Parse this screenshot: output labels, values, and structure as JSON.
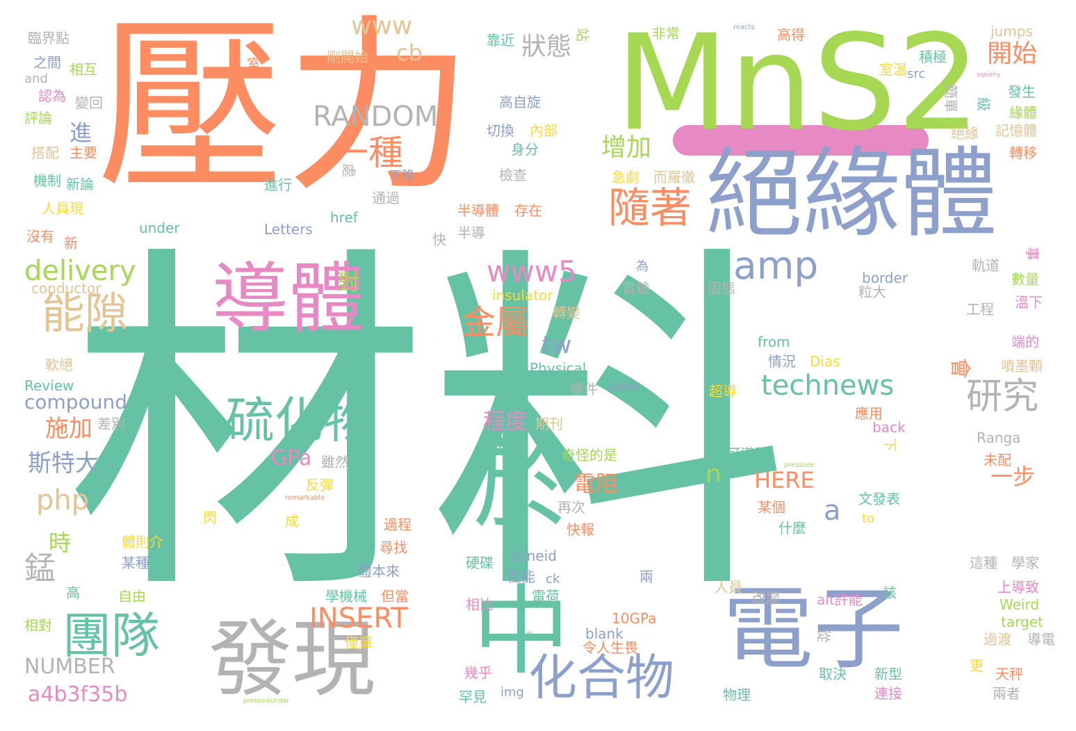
{
  "palette": {
    "teal": "#66c2a5",
    "orange": "#fc8d62",
    "blue": "#8da0cb",
    "pink": "#e78ac3",
    "green": "#a6d854",
    "yellow": "#ffd92f",
    "tan": "#e5c494",
    "gray": "#b3b3b3"
  },
  "highlight_bar_color": "#e78ac3",
  "words": [
    {
      "text": "材料",
      "color": "teal"
    },
    {
      "text": "壓力",
      "color": "orange"
    },
    {
      "text": "MnS2",
      "color": "green"
    },
    {
      "text": "絕緣體",
      "color": "blue"
    },
    {
      "text": "導體",
      "color": "pink"
    },
    {
      "text": "於",
      "color": "teal"
    },
    {
      "text": "中",
      "color": "teal"
    },
    {
      "text": "電子",
      "color": "blue"
    },
    {
      "text": "發現",
      "color": "gray"
    },
    {
      "text": "團隊",
      "color": "teal"
    },
    {
      "text": "硫化物",
      "color": "teal"
    },
    {
      "text": "化合物",
      "color": "blue"
    },
    {
      "text": "能隙",
      "color": "tan"
    },
    {
      "text": "隨著",
      "color": "orange"
    },
    {
      "text": "amp",
      "color": "blue"
    },
    {
      "text": "technews",
      "color": "teal"
    },
    {
      "text": "研究",
      "color": "gray"
    },
    {
      "text": "一種",
      "color": "orange"
    },
    {
      "text": "金屬",
      "color": "orange"
    },
    {
      "text": "www5",
      "color": "pink"
    },
    {
      "text": "delivery",
      "color": "green"
    },
    {
      "text": "RANDOM",
      "color": "gray"
    },
    {
      "text": "INSERT",
      "color": "orange"
    },
    {
      "text": "www",
      "color": "tan"
    },
    {
      "text": "狀態",
      "color": "gray"
    },
    {
      "text": "開始",
      "color": "orange"
    },
    {
      "text": "增加",
      "color": "green"
    },
    {
      "text": "電阻",
      "color": "orange"
    },
    {
      "text": "php",
      "color": "tan"
    },
    {
      "text": "錳",
      "color": "gray"
    },
    {
      "text": "tw",
      "color": "blue"
    },
    {
      "text": "a4b3f35b",
      "color": "pink"
    },
    {
      "text": "NUMBER",
      "color": "gray"
    },
    {
      "text": "compound",
      "color": "blue"
    },
    {
      "text": "斯特大",
      "color": "blue"
    },
    {
      "text": "施加",
      "color": "orange"
    },
    {
      "text": "程度",
      "color": "pink"
    },
    {
      "text": "HERE",
      "color": "orange"
    },
    {
      "text": "一步",
      "color": "orange"
    },
    {
      "text": "會",
      "color": "orange"
    },
    {
      "text": "a",
      "color": "blue"
    },
    {
      "text": "n",
      "color": "green"
    },
    {
      "text": "cb",
      "color": "tan"
    },
    {
      "text": "對",
      "color": "green"
    },
    {
      "text": "進",
      "color": "blue"
    },
    {
      "text": "時",
      "color": "green"
    },
    {
      "text": "GPa",
      "color": "pink"
    },
    {
      "text": "臨界點",
      "color": "gray"
    },
    {
      "text": "之間",
      "color": "blue"
    },
    {
      "text": "相互",
      "color": "green"
    },
    {
      "text": "and",
      "color": "gray"
    },
    {
      "text": "認為",
      "color": "pink"
    },
    {
      "text": "變回",
      "color": "gray"
    },
    {
      "text": "評論",
      "color": "green"
    },
    {
      "text": "搭配",
      "color": "tan"
    },
    {
      "text": "主要",
      "color": "orange"
    },
    {
      "text": "機制",
      "color": "teal"
    },
    {
      "text": "新論",
      "color": "teal"
    },
    {
      "text": "人員現",
      "color": "yellow"
    },
    {
      "text": "沒有",
      "color": "orange"
    },
    {
      "text": "新",
      "color": "orange"
    },
    {
      "text": "conductor",
      "color": "tan"
    },
    {
      "text": "軟絕",
      "color": "tan"
    },
    {
      "text": "Review",
      "color": "teal"
    },
    {
      "text": "差別",
      "color": "gray"
    },
    {
      "text": "高",
      "color": "teal"
    },
    {
      "text": "相對",
      "color": "green"
    },
    {
      "text": "自由",
      "color": "green"
    },
    {
      "text": "某種",
      "color": "blue"
    },
    {
      "text": "體則介",
      "color": "yellow"
    },
    {
      "text": "閃",
      "color": "yellow"
    },
    {
      "text": "成",
      "color": "yellow"
    },
    {
      "text": "剛開始",
      "color": "tan"
    },
    {
      "text": "靠近",
      "color": "teal"
    },
    {
      "text": "站",
      "color": "green"
    },
    {
      "text": "非常",
      "color": "green"
    },
    {
      "text": "室",
      "color": "orange"
    },
    {
      "text": "高自旋",
      "color": "blue"
    },
    {
      "text": "切換",
      "color": "blue"
    },
    {
      "text": "內部",
      "color": "yellow"
    },
    {
      "text": "身分",
      "color": "teal"
    },
    {
      "text": "檢查",
      "color": "gray"
    },
    {
      "text": "急劇",
      "color": "yellow"
    },
    {
      "text": "而羅徹",
      "color": "tan"
    },
    {
      "text": "下降",
      "color": "blue"
    },
    {
      "text": "進行",
      "color": "teal"
    },
    {
      "text": "通過",
      "color": "gray"
    },
    {
      "text": "處",
      "color": "gray"
    },
    {
      "text": "href",
      "color": "teal"
    },
    {
      "text": "under",
      "color": "teal"
    },
    {
      "text": "Letters",
      "color": "blue"
    },
    {
      "text": "半導體",
      "color": "orange"
    },
    {
      "text": "存在",
      "color": "orange"
    },
    {
      "text": "半導",
      "color": "gray"
    },
    {
      "text": "快",
      "color": "gray"
    },
    {
      "text": "為",
      "color": "blue"
    },
    {
      "text": "實驗",
      "color": "gray"
    },
    {
      "text": "固態",
      "color": "gray"
    },
    {
      "text": "insulator",
      "color": "yellow"
    },
    {
      "text": "轉變",
      "color": "tan"
    },
    {
      "text": "border",
      "color": "blue"
    },
    {
      "text": "粒大",
      "color": "gray"
    },
    {
      "text": "工程",
      "color": "gray"
    },
    {
      "text": "from",
      "color": "teal"
    },
    {
      "text": "Dias",
      "color": "yellow"
    },
    {
      "text": "情況",
      "color": "blue"
    },
    {
      "text": "Physical",
      "color": "teal"
    },
    {
      "text": "aww",
      "color": "blue"
    },
    {
      "text": "條件",
      "color": "gray"
    },
    {
      "text": "難易",
      "color": "teal"
    },
    {
      "text": "期刊",
      "color": "tan"
    },
    {
      "text": "超導",
      "color": "yellow"
    },
    {
      "text": "應用",
      "color": "orange"
    },
    {
      "text": "back",
      "color": "pink"
    },
    {
      "text": "下",
      "color": "yellow"
    },
    {
      "text": "Ranga",
      "color": "gray"
    },
    {
      "text": "可導電",
      "color": "teal"
    },
    {
      "text": "pressure",
      "color": "green"
    },
    {
      "text": "未配",
      "color": "orange"
    },
    {
      "text": "奇怪的是",
      "color": "green"
    },
    {
      "text": "雖然",
      "color": "gray"
    },
    {
      "text": "反彈",
      "color": "yellow"
    },
    {
      "text": "remarkable",
      "color": "orange"
    },
    {
      "text": "再次",
      "color": "gray"
    },
    {
      "text": "快報",
      "color": "orange"
    },
    {
      "text": "某個",
      "color": "orange"
    },
    {
      "text": "文發表",
      "color": "teal"
    },
    {
      "text": "to",
      "color": "yellow"
    },
    {
      "text": "什麼",
      "color": "teal"
    },
    {
      "text": "過程",
      "color": "orange"
    },
    {
      "text": "尋找",
      "color": "orange"
    },
    {
      "text": "體本來",
      "color": "blue"
    },
    {
      "text": "硬碟",
      "color": "teal"
    },
    {
      "text": "zoneid",
      "color": "blue"
    },
    {
      "text": "性能",
      "color": "blue"
    },
    {
      "text": "ck",
      "color": "blue"
    },
    {
      "text": "電荷",
      "color": "teal"
    },
    {
      "text": "兩",
      "color": "blue"
    },
    {
      "text": "人員",
      "color": "tan"
    },
    {
      "text": "改變",
      "color": "gray"
    },
    {
      "text": "alt許能",
      "color": "pink"
    },
    {
      "text": "該",
      "color": "teal"
    },
    {
      "text": "學機械",
      "color": "teal"
    },
    {
      "text": "但當",
      "color": "orange"
    },
    {
      "text": "相比",
      "color": "pink"
    },
    {
      "text": "10GPa",
      "color": "orange"
    },
    {
      "text": "blank",
      "color": "blue"
    },
    {
      "text": "令人生畏",
      "color": "orange"
    },
    {
      "text": "僅單",
      "color": "yellow"
    },
    {
      "text": "從",
      "color": "gray"
    },
    {
      "text": "取決",
      "color": "teal"
    },
    {
      "text": "新型",
      "color": "teal"
    },
    {
      "text": "連接",
      "color": "pink"
    },
    {
      "text": "物理",
      "color": "teal"
    },
    {
      "text": "幾乎",
      "color": "pink"
    },
    {
      "text": "罕見",
      "color": "teal"
    },
    {
      "text": "img",
      "color": "blue"
    },
    {
      "text": "pressureUnder",
      "color": "green"
    },
    {
      "text": "in",
      "color": "blue"
    },
    {
      "text": "這種",
      "color": "gray"
    },
    {
      "text": "學家",
      "color": "gray"
    },
    {
      "text": "上導致",
      "color": "pink"
    },
    {
      "text": "Weird",
      "color": "green"
    },
    {
      "text": "target",
      "color": "green"
    },
    {
      "text": "過渡",
      "color": "tan"
    },
    {
      "text": "導電",
      "color": "gray"
    },
    {
      "text": "更",
      "color": "yellow"
    },
    {
      "text": "天秤",
      "color": "orange"
    },
    {
      "text": "兩者",
      "color": "gray"
    },
    {
      "text": "高得",
      "color": "orange"
    },
    {
      "text": "jumps",
      "color": "tan"
    },
    {
      "text": "室溫",
      "color": "yellow"
    },
    {
      "text": "積極",
      "color": "teal"
    },
    {
      "text": "src",
      "color": "blue"
    },
    {
      "text": "squishy",
      "color": "pink"
    },
    {
      "text": "簡單",
      "color": "gray"
    },
    {
      "text": "發生",
      "color": "teal"
    },
    {
      "text": "級",
      "color": "teal"
    },
    {
      "text": "緣體",
      "color": "green"
    },
    {
      "text": "絕緣",
      "color": "tan"
    },
    {
      "text": "記憶體",
      "color": "tan"
    },
    {
      "text": "轉移",
      "color": "orange"
    },
    {
      "text": "reacts",
      "color": "blue"
    },
    {
      "text": "事",
      "color": "pink"
    },
    {
      "text": "軌道",
      "color": "gray"
    },
    {
      "text": "數量",
      "color": "green"
    },
    {
      "text": "溫下",
      "color": "pink"
    },
    {
      "text": "端的",
      "color": "pink"
    },
    {
      "text": "噴墨顆",
      "color": "tan"
    }
  ]
}
